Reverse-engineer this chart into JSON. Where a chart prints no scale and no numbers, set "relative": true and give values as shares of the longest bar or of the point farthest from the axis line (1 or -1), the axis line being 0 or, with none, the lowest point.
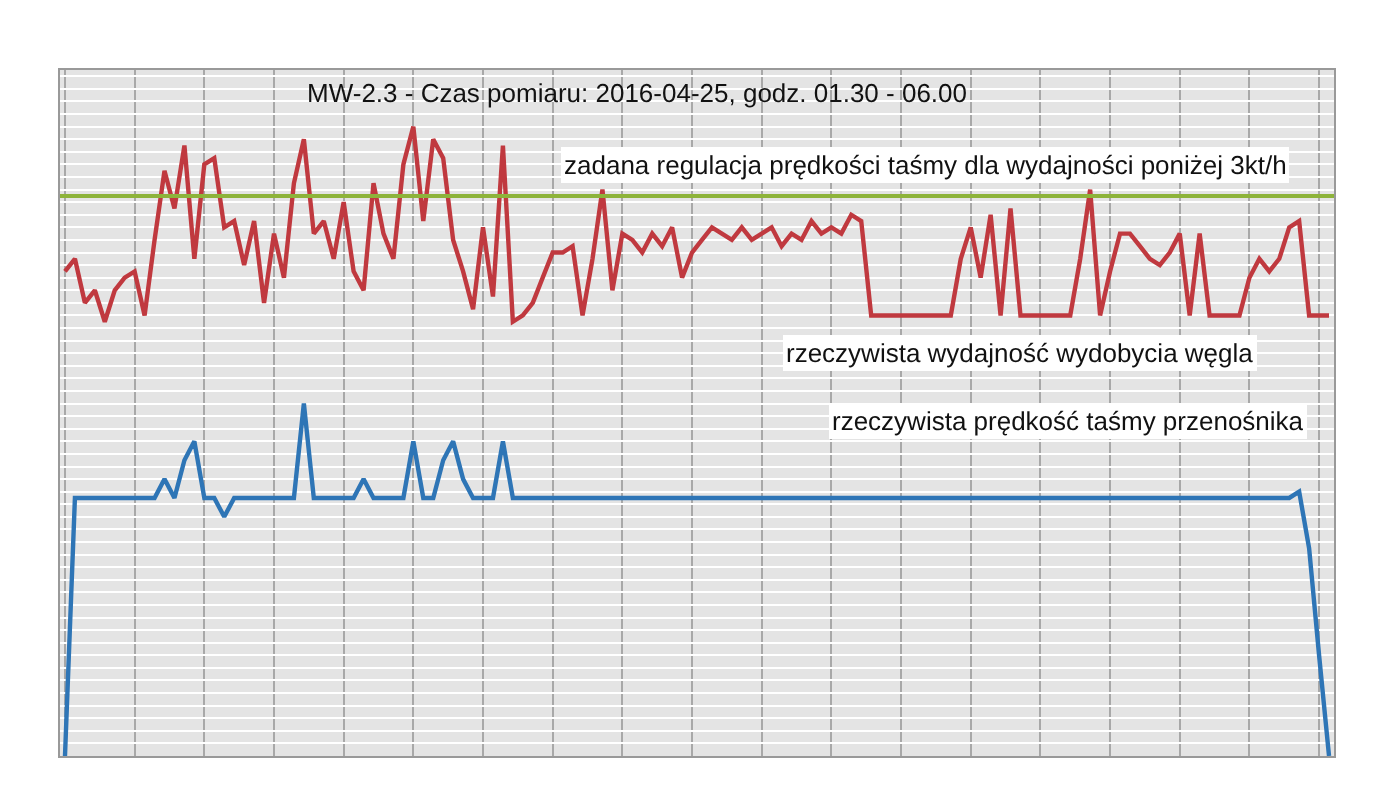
{
  "chart_data": {
    "type": "line",
    "relative": true,
    "title": "MW-2.3 - Czas pomiaru: 2016-04-25, godz. 01.30 - 06.00",
    "categories": [
      null,
      null,
      null,
      null,
      null,
      null,
      null,
      null,
      null,
      null,
      null,
      null,
      null,
      null,
      null,
      null,
      null,
      null,
      null,
      null,
      null,
      null,
      null,
      null,
      null,
      null,
      null,
      null,
      null,
      null,
      null,
      null,
      null,
      null,
      null,
      null,
      null,
      null,
      null,
      null,
      null,
      null,
      null,
      null,
      null,
      null,
      null,
      null,
      null,
      null,
      null,
      null,
      null,
      null,
      null,
      null,
      null,
      null,
      null,
      null,
      null,
      null,
      null,
      null,
      null,
      null,
      null,
      null,
      null,
      null,
      null,
      null,
      null,
      null,
      null,
      null,
      null,
      null,
      null,
      null,
      null,
      null,
      null,
      null,
      null,
      null,
      null,
      null,
      null,
      null,
      null,
      null,
      null,
      null,
      null,
      null,
      null,
      null,
      null,
      null,
      null,
      null,
      null,
      null,
      null,
      null,
      null,
      null,
      null,
      null,
      null,
      null,
      null,
      null,
      null,
      null,
      null,
      null,
      null,
      null,
      null,
      null,
      null,
      null,
      null,
      null,
      null,
      null
    ],
    "series": [
      {
        "color": "#c0393f",
        "values": [
          0.77,
          0.79,
          0.72,
          0.74,
          0.69,
          0.74,
          0.76,
          0.77,
          0.7,
          0.82,
          0.93,
          0.87,
          0.97,
          0.79,
          0.94,
          0.95,
          0.84,
          0.85,
          0.78,
          0.85,
          0.72,
          0.83,
          0.76,
          0.91,
          0.98,
          0.83,
          0.85,
          0.79,
          0.88,
          0.77,
          0.74,
          0.91,
          0.83,
          0.79,
          0.94,
          1,
          0.85,
          0.98,
          0.95,
          0.82,
          0.77,
          0.71,
          0.84,
          0.73,
          0.97,
          0.69,
          0.7,
          0.72,
          0.76,
          0.8,
          0.8,
          0.81,
          0.7,
          0.79,
          0.9,
          0.74,
          0.83,
          0.82,
          0.8,
          0.83,
          0.81,
          0.84,
          0.76,
          0.8,
          0.82,
          0.84,
          0.83,
          0.82,
          0.84,
          0.82,
          0.83,
          0.84,
          0.81,
          0.83,
          0.82,
          0.85,
          0.83,
          0.84,
          0.83,
          0.86,
          0.85,
          0.7,
          0.7,
          0.7,
          0.7,
          0.7,
          0.7,
          0.7,
          0.7,
          0.7,
          0.79,
          0.84,
          0.76,
          0.86,
          0.7,
          0.87,
          0.7,
          0.7,
          0.7,
          0.7,
          0.7,
          0.7,
          0.79,
          0.9,
          0.7,
          0.77,
          0.83,
          0.83,
          0.81,
          0.79,
          0.78,
          0.8,
          0.83,
          0.7,
          0.83,
          0.7,
          0.7,
          0.7,
          0.7,
          0.76,
          0.79,
          0.77,
          0.79,
          0.84,
          0.85,
          0.7,
          0.7,
          0.7
        ]
      },
      {
        "color": "#2e75b6",
        "values": [
          0,
          0.41,
          0.41,
          0.41,
          0.41,
          0.41,
          0.41,
          0.41,
          0.41,
          0.41,
          0.44,
          0.41,
          0.47,
          0.5,
          0.41,
          0.41,
          0.38,
          0.41,
          0.41,
          0.41,
          0.41,
          0.41,
          0.41,
          0.41,
          0.56,
          0.41,
          0.41,
          0.41,
          0.41,
          0.41,
          0.44,
          0.41,
          0.41,
          0.41,
          0.41,
          0.5,
          0.41,
          0.41,
          0.47,
          0.5,
          0.44,
          0.41,
          0.41,
          0.41,
          0.5,
          0.41,
          0.41,
          0.41,
          0.41,
          0.41,
          0.41,
          0.41,
          0.41,
          0.41,
          0.41,
          0.41,
          0.41,
          0.41,
          0.41,
          0.41,
          0.41,
          0.41,
          0.41,
          0.41,
          0.41,
          0.41,
          0.41,
          0.41,
          0.41,
          0.41,
          0.41,
          0.41,
          0.41,
          0.41,
          0.41,
          0.41,
          0.41,
          0.41,
          0.41,
          0.41,
          0.41,
          0.41,
          0.41,
          0.41,
          0.41,
          0.41,
          0.41,
          0.41,
          0.41,
          0.41,
          0.41,
          0.41,
          0.41,
          0.41,
          0.41,
          0.41,
          0.41,
          0.41,
          0.41,
          0.41,
          0.41,
          0.41,
          0.41,
          0.41,
          0.41,
          0.41,
          0.41,
          0.41,
          0.41,
          0.41,
          0.41,
          0.41,
          0.41,
          0.41,
          0.41,
          0.41,
          0.41,
          0.41,
          0.41,
          0.41,
          0.41,
          0.41,
          0.41,
          0.41,
          0.42,
          0.33,
          0.16,
          0
        ]
      }
    ],
    "ref_lines": [
      {
        "axis": "y",
        "value": 0.89,
        "label": "zadana regulacja prędkości taśmy dla wydajności poniżej 3kt/h",
        "color": "#8db33a"
      }
    ],
    "annotations": [
      "rzeczywista wydajność wydobycia węgla",
      "rzeczywista prędkość taśmy przenośnika"
    ],
    "grid": true,
    "line_style": "solid"
  }
}
